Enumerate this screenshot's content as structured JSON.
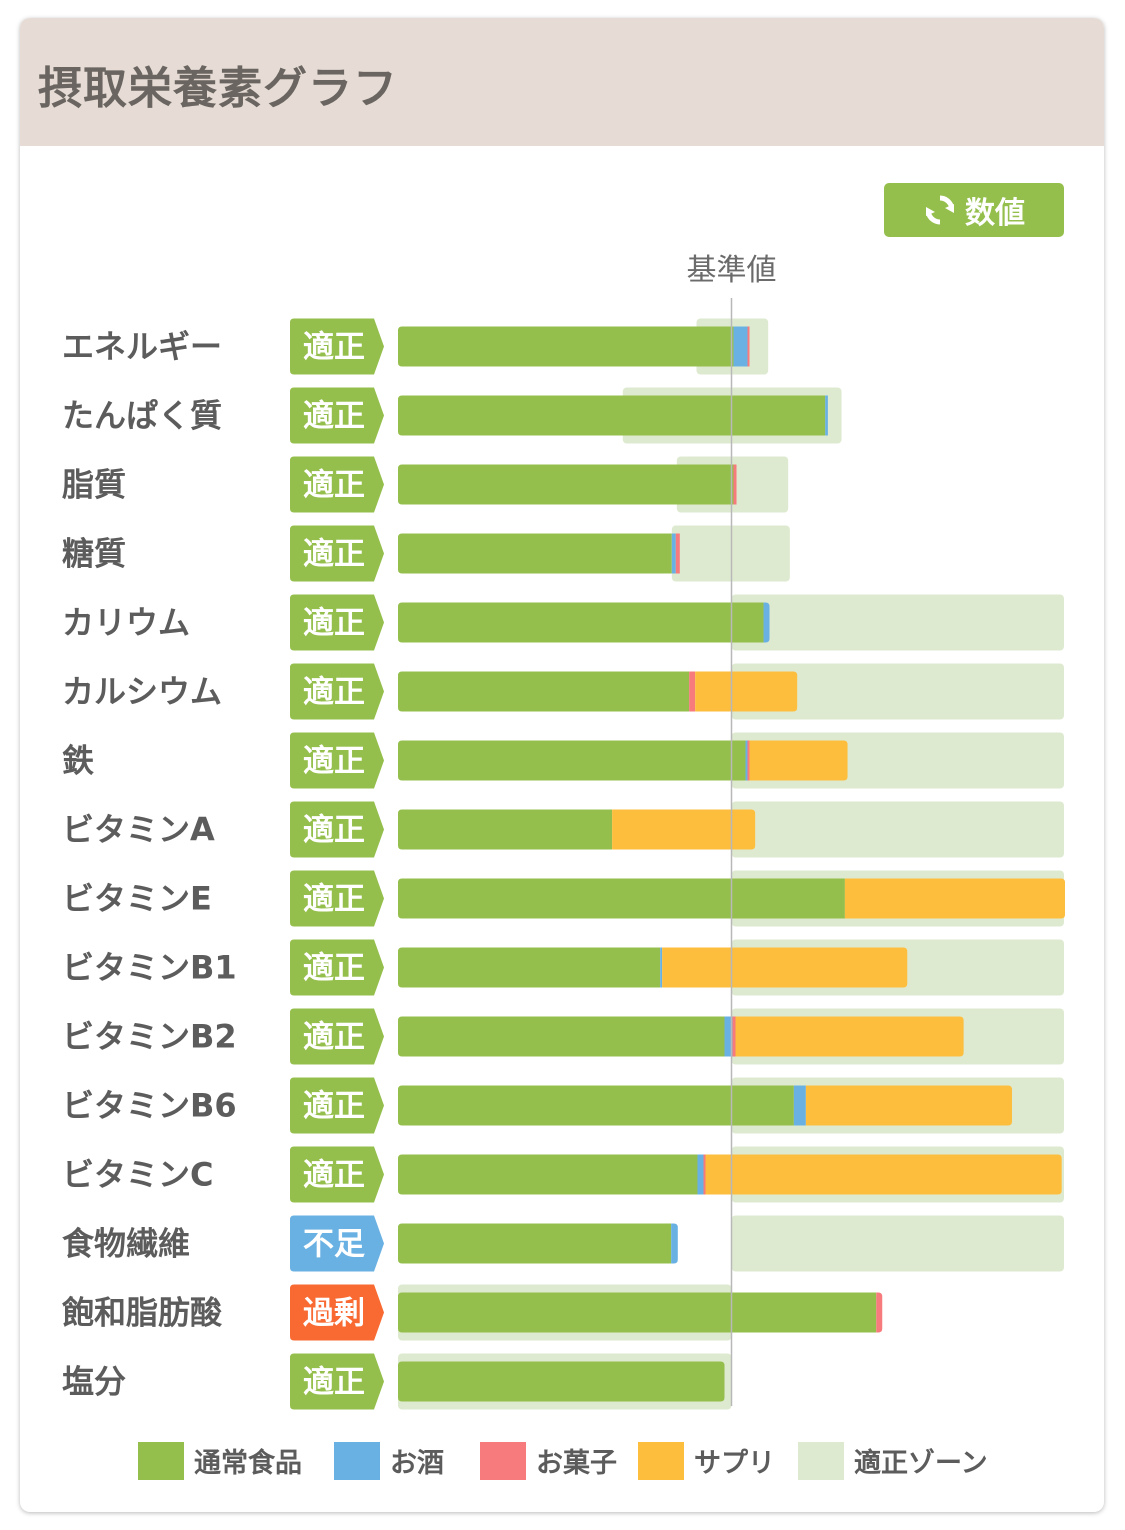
{
  "header": {
    "title": "摂取栄養素グラフ"
  },
  "toolbar": {
    "toggle_label": "数値",
    "toggle_icon": "refresh-icon"
  },
  "colors": {
    "regular": "#95bf4c",
    "alcohol": "#6ab1e3",
    "snack": "#f77a7d",
    "supplement": "#fdbd3d",
    "zone": "#deead0",
    "appropriate": "#95bf4c",
    "insufficient": "#6ab1e3",
    "excessive": "#f86a32"
  },
  "chart_data": {
    "type": "bar",
    "orientation": "horizontal",
    "stacked": true,
    "reference_line": {
      "label": "基準値",
      "value": 100
    },
    "axis_unit": "% of 基準値",
    "categories": [
      "エネルギー",
      "たんぱく質",
      "脂質",
      "糖質",
      "カリウム",
      "カルシウム",
      "鉄",
      "ビタミンA",
      "ビタミンE",
      "ビタミンB1",
      "ビタミンB2",
      "ビタミンB6",
      "ビタミンC",
      "食物繊維",
      "飽和脂肪酸",
      "塩分"
    ],
    "status": [
      {
        "key": "appropriate",
        "label": "適正"
      },
      {
        "key": "appropriate",
        "label": "適正"
      },
      {
        "key": "appropriate",
        "label": "適正"
      },
      {
        "key": "appropriate",
        "label": "適正"
      },
      {
        "key": "appropriate",
        "label": "適正"
      },
      {
        "key": "appropriate",
        "label": "適正"
      },
      {
        "key": "appropriate",
        "label": "適正"
      },
      {
        "key": "appropriate",
        "label": "適正"
      },
      {
        "key": "appropriate",
        "label": "適正"
      },
      {
        "key": "appropriate",
        "label": "適正"
      },
      {
        "key": "appropriate",
        "label": "適正"
      },
      {
        "key": "appropriate",
        "label": "適正"
      },
      {
        "key": "appropriate",
        "label": "適正"
      },
      {
        "key": "insufficient",
        "label": "不足"
      },
      {
        "key": "excessive",
        "label": "過剰"
      },
      {
        "key": "appropriate",
        "label": "適正"
      }
    ],
    "appropriate_zone": [
      [
        89.5,
        111
      ],
      [
        67.4,
        133
      ],
      [
        83.6,
        117
      ],
      [
        82.1,
        117.5
      ],
      [
        100,
        200
      ],
      [
        100,
        200
      ],
      [
        100,
        200
      ],
      [
        100,
        200
      ],
      [
        100,
        200
      ],
      [
        100,
        200
      ],
      [
        100,
        200
      ],
      [
        100,
        200
      ],
      [
        100,
        200
      ],
      [
        100,
        200
      ],
      [
        0,
        100
      ],
      [
        0,
        100
      ]
    ],
    "series": [
      {
        "name": "通常食品",
        "key": "regular",
        "values": [
          100.6,
          128.1,
          100.6,
          82.1,
          109.6,
          87.3,
          104.2,
          64.2,
          134.0,
          78.6,
          97.9,
          118.7,
          89.8,
          81.9,
          143.4,
          97.9
        ]
      },
      {
        "name": "お酒",
        "key": "alcohol",
        "values": [
          4.2,
          0.8,
          0,
          1.2,
          1.8,
          0,
          0.6,
          0,
          0,
          0.6,
          2.4,
          3.6,
          1.8,
          2.0,
          0,
          0
        ]
      },
      {
        "name": "お菓子",
        "key": "snack",
        "values": [
          0.6,
          0,
          0.9,
          1.2,
          0,
          1.8,
          0.6,
          0,
          0,
          0,
          0.9,
          0,
          0.6,
          0,
          1.8,
          0
        ]
      },
      {
        "name": "サプリ",
        "key": "supplement",
        "values": [
          0,
          0,
          0,
          0,
          0,
          30.6,
          29.4,
          42.9,
          66.0,
          73.5,
          68.4,
          61.8,
          106.8,
          0,
          0,
          0
        ]
      }
    ],
    "legend": [
      {
        "key": "regular",
        "label": "通常食品"
      },
      {
        "key": "alcohol",
        "label": "お酒"
      },
      {
        "key": "snack",
        "label": "お菓子"
      },
      {
        "key": "supplement",
        "label": "サプリ"
      },
      {
        "key": "zone",
        "label": "適正ゾーン"
      }
    ],
    "legend_position": "bottom"
  }
}
